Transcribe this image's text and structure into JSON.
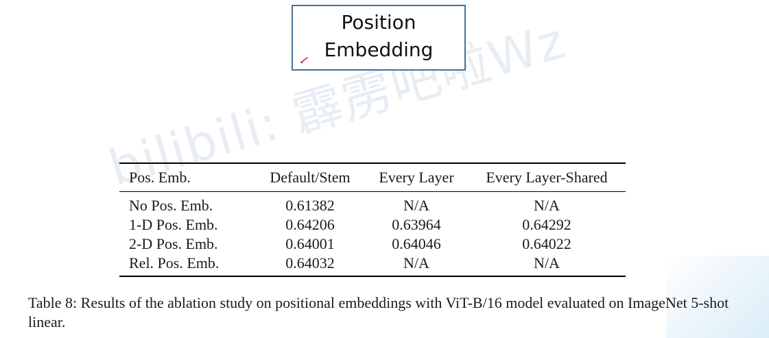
{
  "slide_title": {
    "line1": "Position",
    "line2": "Embedding"
  },
  "watermark": "bilibili: 霹雳吧啦Wz",
  "table": {
    "headers": [
      "Pos. Emb.",
      "Default/Stem",
      "Every Layer",
      "Every Layer-Shared"
    ],
    "rows": [
      [
        "No Pos. Emb.",
        "0.61382",
        "N/A",
        "N/A"
      ],
      [
        "1-D Pos. Emb.",
        "0.64206",
        "0.63964",
        "0.64292"
      ],
      [
        "2-D Pos. Emb.",
        "0.64001",
        "0.64046",
        "0.64022"
      ],
      [
        "Rel. Pos. Emb.",
        "0.64032",
        "N/A",
        "N/A"
      ]
    ]
  },
  "caption": "Table 8: Results of the ablation study on positional embeddings with ViT-B/16 model evaluated on ImageNet 5-shot linear.",
  "colors": {
    "box_border": "#41719c",
    "pen_cursor": "#c0392b"
  }
}
